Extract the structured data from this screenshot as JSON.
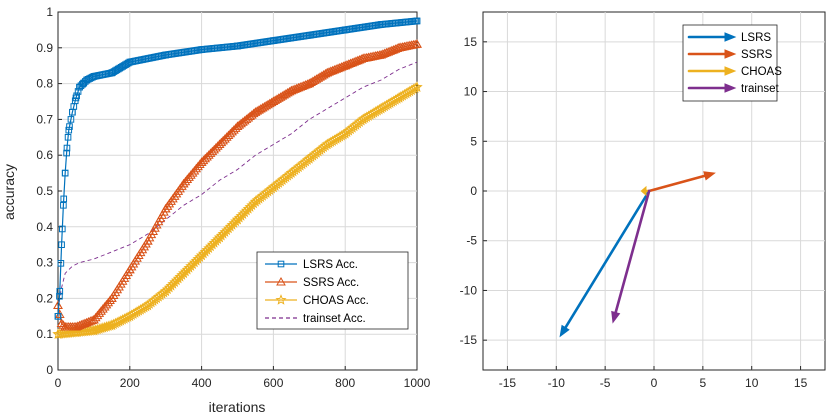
{
  "chart_data": [
    {
      "type": "line",
      "xlabel": "iterations",
      "ylabel": "accuracy",
      "xlim": [
        0,
        1000
      ],
      "ylim": [
        0,
        1
      ],
      "xticks": [
        "0",
        "200",
        "400",
        "600",
        "800",
        "1000"
      ],
      "yticks": [
        "0",
        "0.1",
        "0.2",
        "0.3",
        "0.4",
        "0.5",
        "0.6",
        "0.7",
        "0.8",
        "0.9",
        "1"
      ],
      "grid": true,
      "legend_position": "bottom-right",
      "series": [
        {
          "name": "LSRS Acc.",
          "color": "#0072BD",
          "marker": "square",
          "x": [
            0,
            5,
            10,
            15,
            20,
            25,
            30,
            40,
            50,
            60,
            70,
            80,
            100,
            150,
            200,
            300,
            400,
            500,
            600,
            700,
            800,
            900,
            1000
          ],
          "y": [
            0.15,
            0.22,
            0.35,
            0.46,
            0.55,
            0.62,
            0.67,
            0.72,
            0.76,
            0.79,
            0.8,
            0.81,
            0.82,
            0.83,
            0.86,
            0.88,
            0.895,
            0.905,
            0.92,
            0.935,
            0.95,
            0.965,
            0.975
          ]
        },
        {
          "name": "SSRS Acc.",
          "color": "#D95319",
          "marker": "triangle",
          "x": [
            0,
            10,
            20,
            50,
            100,
            150,
            200,
            250,
            300,
            350,
            400,
            450,
            500,
            550,
            600,
            650,
            700,
            750,
            800,
            850,
            900,
            950,
            1000
          ],
          "y": [
            0.18,
            0.13,
            0.12,
            0.12,
            0.14,
            0.2,
            0.28,
            0.36,
            0.45,
            0.52,
            0.58,
            0.63,
            0.68,
            0.72,
            0.75,
            0.78,
            0.8,
            0.83,
            0.85,
            0.87,
            0.88,
            0.9,
            0.91
          ]
        },
        {
          "name": "CHOAS Acc.",
          "color": "#EDB120",
          "marker": "star",
          "x": [
            0,
            50,
            100,
            150,
            200,
            250,
            300,
            350,
            400,
            450,
            500,
            550,
            600,
            650,
            700,
            750,
            800,
            850,
            900,
            950,
            1000
          ],
          "y": [
            0.1,
            0.105,
            0.11,
            0.125,
            0.15,
            0.18,
            0.22,
            0.27,
            0.32,
            0.37,
            0.42,
            0.47,
            0.51,
            0.55,
            0.59,
            0.63,
            0.66,
            0.7,
            0.73,
            0.76,
            0.79
          ]
        },
        {
          "name": "trainset Acc.",
          "color": "#7E2F8E",
          "marker": "none",
          "dashed": true,
          "x": [
            0,
            10,
            20,
            40,
            60,
            100,
            150,
            200,
            250,
            300,
            350,
            400,
            450,
            500,
            550,
            600,
            650,
            700,
            750,
            800,
            850,
            900,
            950,
            1000
          ],
          "y": [
            0.17,
            0.23,
            0.27,
            0.29,
            0.3,
            0.31,
            0.33,
            0.35,
            0.38,
            0.42,
            0.46,
            0.49,
            0.53,
            0.56,
            0.6,
            0.63,
            0.66,
            0.7,
            0.73,
            0.76,
            0.79,
            0.81,
            0.84,
            0.86
          ]
        }
      ]
    },
    {
      "type": "quiver",
      "xlim": [
        -17.5,
        17.5
      ],
      "ylim": [
        -18,
        18
      ],
      "xticks": [
        "-15",
        "-10",
        "-5",
        "0",
        "5",
        "10",
        "15"
      ],
      "yticks": [
        "-15",
        "-10",
        "-5",
        "0",
        "5",
        "10",
        "15"
      ],
      "grid": true,
      "legend_position": "top-right",
      "series": [
        {
          "name": "LSRS",
          "color": "#0072BD",
          "from": [
            -0.5,
            0
          ],
          "to": [
            -9.6,
            -14.6
          ]
        },
        {
          "name": "SSRS",
          "color": "#D95319",
          "from": [
            -0.5,
            0
          ],
          "to": [
            6.2,
            1.8
          ]
        },
        {
          "name": "CHOAS",
          "color": "#EDB120",
          "from": [
            -0.5,
            0
          ],
          "to": [
            -1.3,
            0
          ]
        },
        {
          "name": "trainset",
          "color": "#7E2F8E",
          "from": [
            -0.5,
            0
          ],
          "to": [
            -4.2,
            -13.2
          ]
        }
      ]
    }
  ]
}
